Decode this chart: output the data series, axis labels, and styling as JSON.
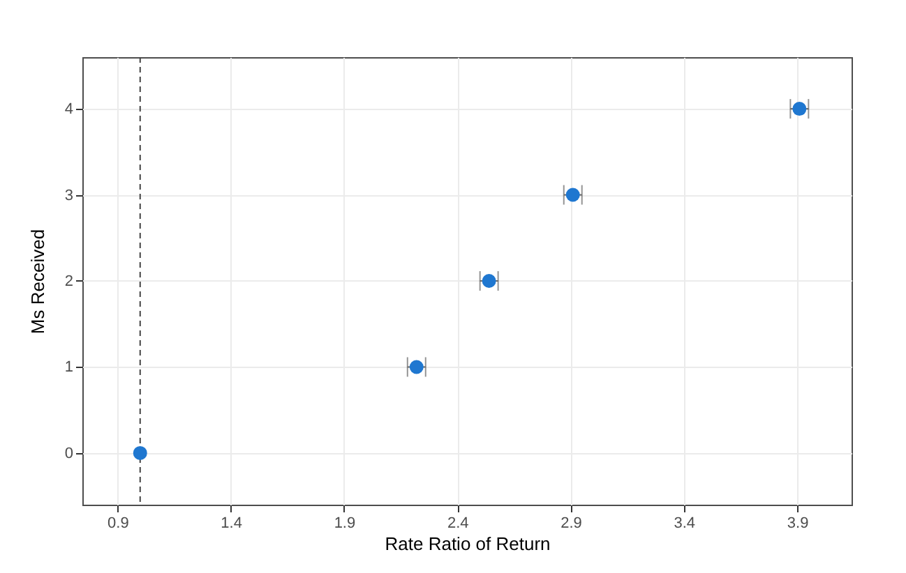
{
  "chart_data": {
    "type": "scatter",
    "xlabel": "Rate Ratio of Return",
    "ylabel": "Ms Received",
    "x": [
      1.0,
      2.22,
      2.54,
      2.91,
      3.91
    ],
    "values": [
      0,
      1,
      2,
      3,
      4
    ],
    "xerrors": [
      null,
      0.04,
      0.04,
      0.04,
      0.04
    ],
    "color": "#1f77d0",
    "marker": "circle",
    "grid": true,
    "xlim": [
      0.745,
      4.14
    ],
    "xticks": [
      0.9,
      1.4,
      1.9,
      2.4,
      2.9,
      3.4,
      3.9
    ],
    "ylim": [
      -0.6,
      4.6
    ],
    "yticks": [
      0,
      1,
      2,
      3,
      4
    ],
    "ref_lines": [
      {
        "axis": "x",
        "value": 1.0,
        "line_style": "dashed",
        "color": "#444444"
      }
    ]
  }
}
